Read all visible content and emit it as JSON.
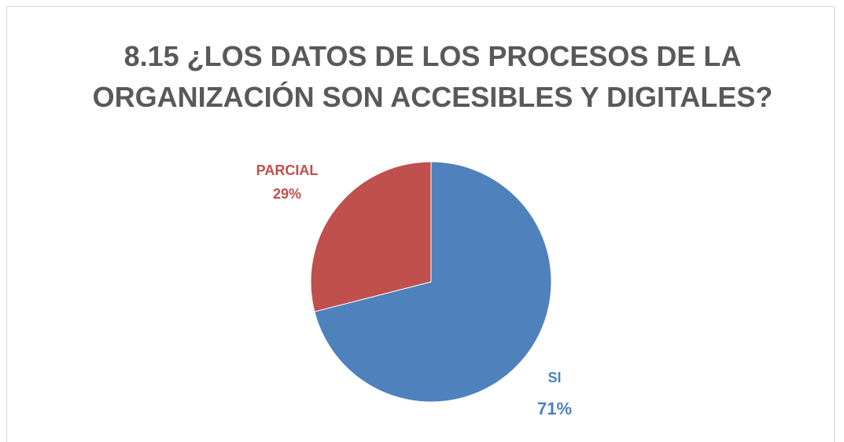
{
  "chart_data": {
    "type": "pie",
    "title": "8.15 ¿LOS DATOS DE LOS PROCESOS DE LA ORGANIZACIÓN SON ACCESIBLES Y DIGITALES?",
    "categories": [
      "SI",
      "PARCIAL"
    ],
    "values": [
      71,
      29
    ],
    "value_labels": [
      "71%",
      "29%"
    ],
    "colors": [
      "#4f81bd",
      "#c0504d"
    ]
  }
}
